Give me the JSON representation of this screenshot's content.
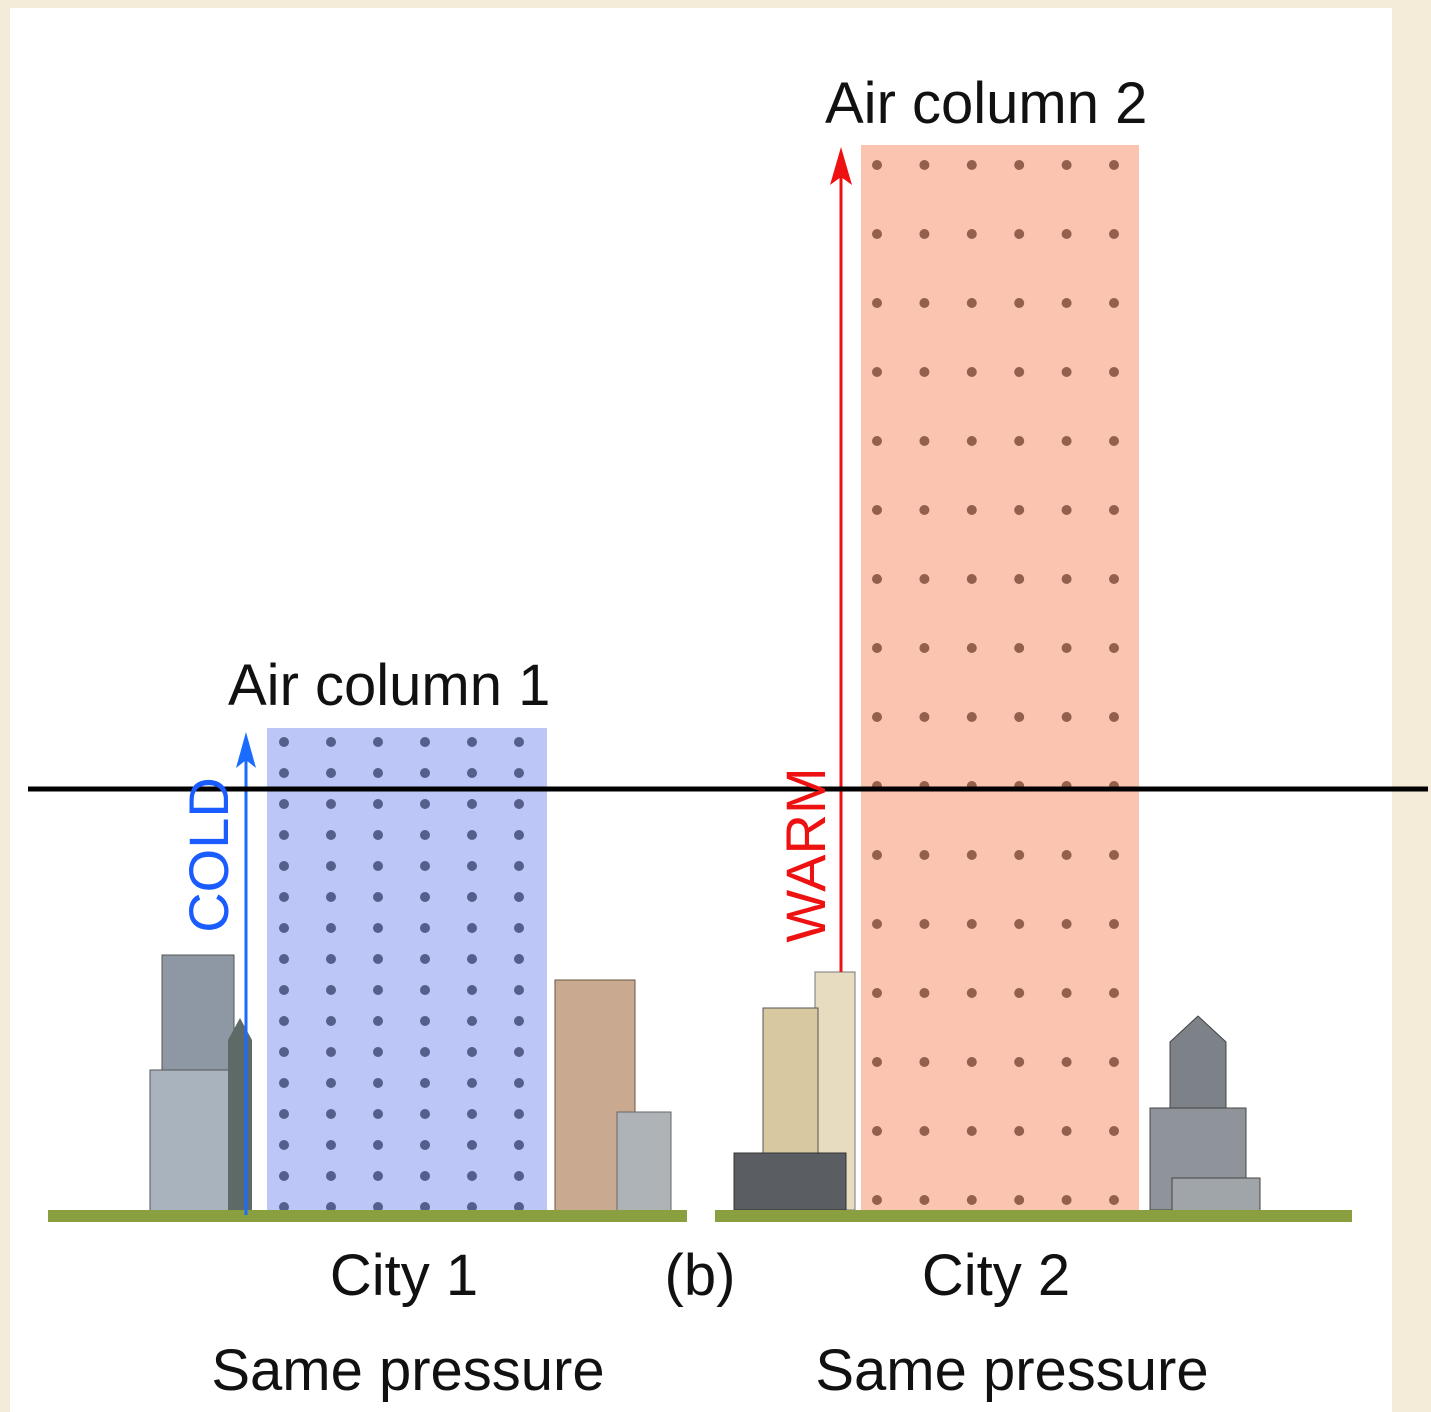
{
  "columns": [
    {
      "label": "Air column 1",
      "arrow": "COLD",
      "city": "City 1",
      "caption": "Same pressure"
    },
    {
      "label": "Air column 2",
      "arrow": "WARM",
      "city": "City 2",
      "caption": "Same pressure"
    }
  ],
  "panel": "(b)"
}
